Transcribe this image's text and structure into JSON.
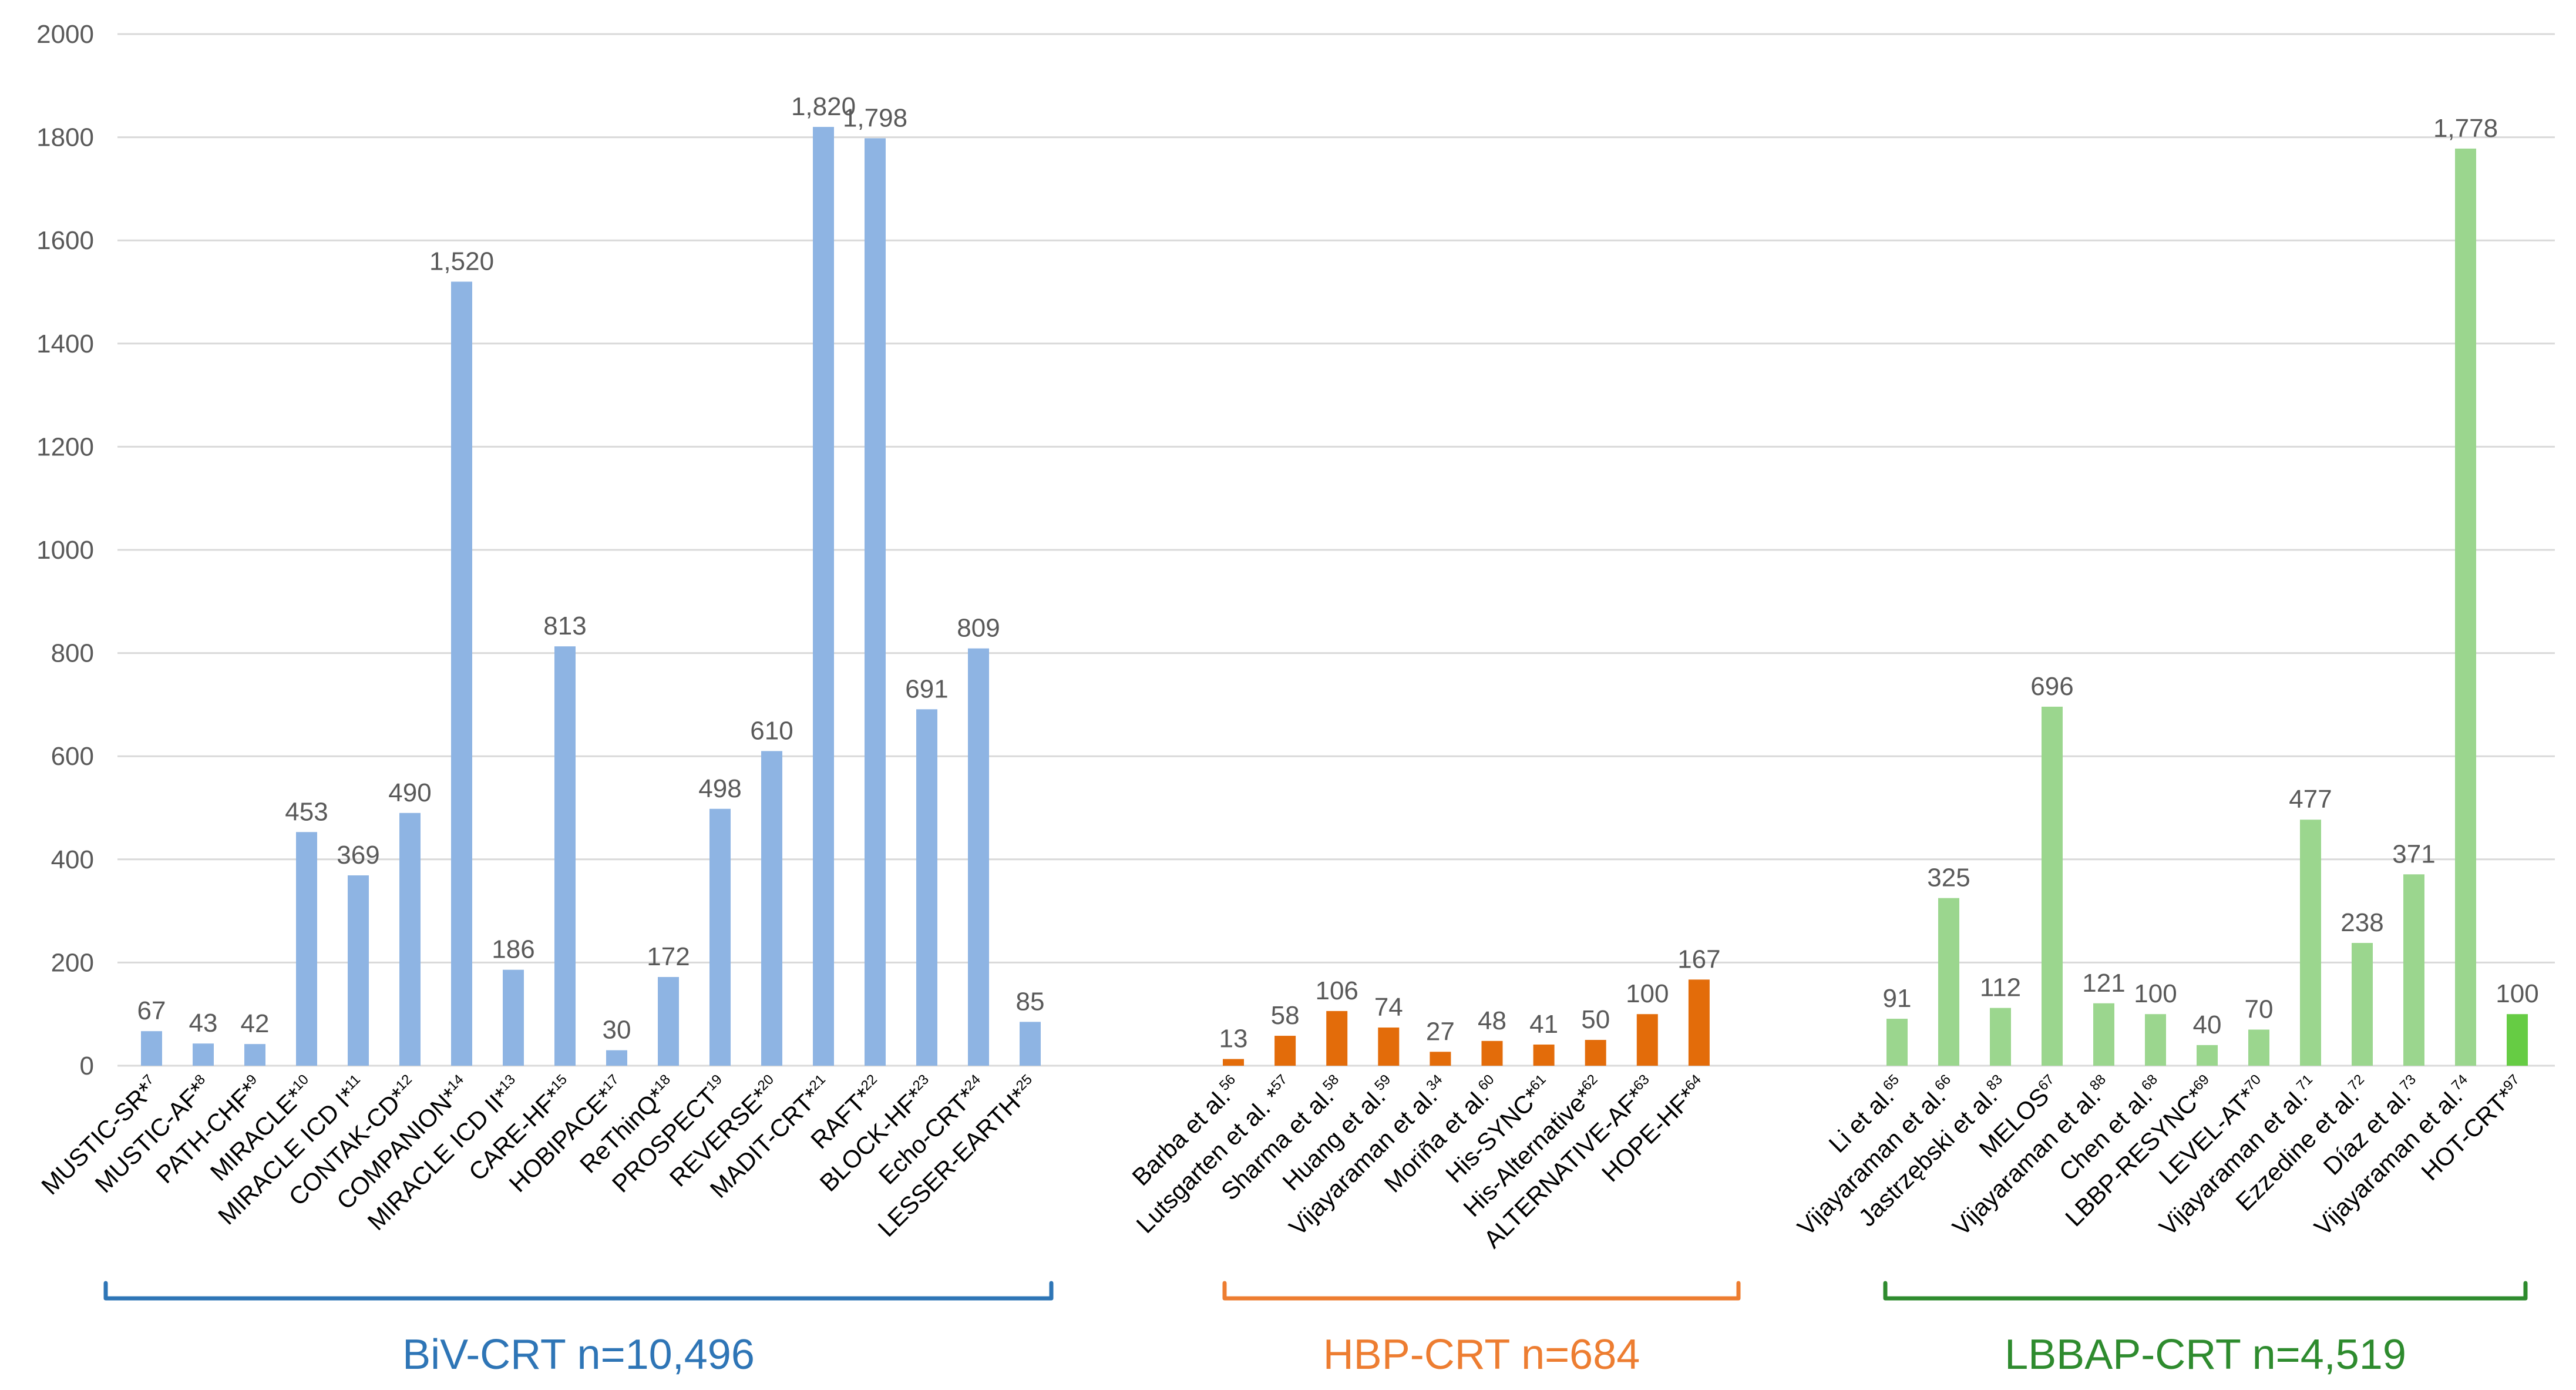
{
  "chart_data": {
    "type": "bar",
    "ylim": [
      0,
      2000
    ],
    "yticks": [
      0,
      200,
      400,
      600,
      800,
      1000,
      1200,
      1400,
      1600,
      1800,
      2000
    ],
    "grid": true,
    "colors": {
      "biv": "#8eb4e3",
      "hbp": "#e36c0a",
      "lbbap": "#9bd68e",
      "lbbap_highlight": "#66cc44",
      "biv_bracket": "#2e75b6",
      "hbp_bracket": "#ed7d31",
      "lbbap_bracket": "#2e8b2e",
      "grid": "#d9d9d9",
      "axis_text": "#595959"
    },
    "groups": [
      {
        "key": "biv",
        "label": "BiV-CRT n=10,496",
        "bars": [
          {
            "name": "MUSTIC-SR*",
            "ref": "7",
            "value": 67,
            "value_label": "67"
          },
          {
            "name": "MUSTIC-AF*",
            "ref": "8",
            "value": 43,
            "value_label": "43"
          },
          {
            "name": "PATH-CHF*",
            "ref": "9",
            "value": 42,
            "value_label": "42"
          },
          {
            "name": "MIRACLE*",
            "ref": "10",
            "value": 453,
            "value_label": "453"
          },
          {
            "name": "MIRACLE ICD I*",
            "ref": "11",
            "value": 369,
            "value_label": "369"
          },
          {
            "name": "CONTAK-CD*",
            "ref": "12",
            "value": 490,
            "value_label": "490"
          },
          {
            "name": "COMPANION*",
            "ref": "14",
            "value": 1520,
            "value_label": "1,520"
          },
          {
            "name": "MIRACLE ICD II*",
            "ref": "13",
            "value": 186,
            "value_label": "186"
          },
          {
            "name": "CARE-HF*",
            "ref": "15",
            "value": 813,
            "value_label": "813"
          },
          {
            "name": "HOBIPACE*",
            "ref": "17",
            "value": 30,
            "value_label": "30"
          },
          {
            "name": "ReThinQ*",
            "ref": "18",
            "value": 172,
            "value_label": "172"
          },
          {
            "name": "PROSPECT",
            "ref": "19",
            "value": 498,
            "value_label": "498"
          },
          {
            "name": "REVERSE*",
            "ref": "20",
            "value": 610,
            "value_label": "610"
          },
          {
            "name": "MADIT-CRT*",
            "ref": "21",
            "value": 1820,
            "value_label": "1,820"
          },
          {
            "name": "RAFT*",
            "ref": "22",
            "value": 1798,
            "value_label": "1,798"
          },
          {
            "name": "BLOCK-HF*",
            "ref": "23",
            "value": 691,
            "value_label": "691"
          },
          {
            "name": "Echo-CRT*",
            "ref": "24",
            "value": 809,
            "value_label": "809"
          },
          {
            "name": "LESSER-EARTH*",
            "ref": "25",
            "value": 85,
            "value_label": "85"
          }
        ]
      },
      {
        "key": "hbp",
        "label": "HBP-CRT n=684",
        "bars": [
          {
            "name": "Barba et al.",
            "ref": "56",
            "value": 13,
            "value_label": "13"
          },
          {
            "name": "Lutsgarten et al. *",
            "ref": "57",
            "value": 58,
            "value_label": "58"
          },
          {
            "name": "Sharma et al.",
            "ref": "58",
            "value": 106,
            "value_label": "106"
          },
          {
            "name": "Huang et al.",
            "ref": "59",
            "value": 74,
            "value_label": "74"
          },
          {
            "name": "Vijayaraman et al.",
            "ref": "34",
            "value": 27,
            "value_label": "27"
          },
          {
            "name": "Moriña et al.",
            "ref": "60",
            "value": 48,
            "value_label": "48"
          },
          {
            "name": "His-SYNC*",
            "ref": "61",
            "value": 41,
            "value_label": "41"
          },
          {
            "name": "His-Alternative*",
            "ref": "62",
            "value": 50,
            "value_label": "50"
          },
          {
            "name": "ALTERNATIVE-AF*",
            "ref": "63",
            "value": 100,
            "value_label": "100"
          },
          {
            "name": "HOPE-HF*",
            "ref": "64",
            "value": 167,
            "value_label": "167"
          }
        ]
      },
      {
        "key": "lbbap",
        "label": "LBBAP-CRT n=4,519",
        "bars": [
          {
            "name": "Li et al.",
            "ref": "65",
            "value": 91,
            "value_label": "91"
          },
          {
            "name": "Vijayaraman et al.",
            "ref": "66",
            "value": 325,
            "value_label": "325"
          },
          {
            "name": "Jastrzębski et al.",
            "ref": "83",
            "value": 112,
            "value_label": "112"
          },
          {
            "name": "MELOS",
            "ref": "67",
            "value": 696,
            "value_label": "696"
          },
          {
            "name": "Vijayaraman et al.",
            "ref": "88",
            "value": 121,
            "value_label": "121"
          },
          {
            "name": "Chen et al.",
            "ref": "68",
            "value": 100,
            "value_label": "100"
          },
          {
            "name": "LBBP-RESYNC*",
            "ref": "69",
            "value": 40,
            "value_label": "40"
          },
          {
            "name": "LEVEL-AT*",
            "ref": "70",
            "value": 70,
            "value_label": "70"
          },
          {
            "name": "Vijayaraman et al.",
            "ref": "71",
            "value": 477,
            "value_label": "477"
          },
          {
            "name": "Ezzedine et al.",
            "ref": "72",
            "value": 238,
            "value_label": "238"
          },
          {
            "name": "Díaz et al.",
            "ref": "73",
            "value": 371,
            "value_label": "371"
          },
          {
            "name": "Vijayaraman et al.",
            "ref": "74",
            "value": 1778,
            "value_label": "1,778"
          },
          {
            "name": "HOT-CRT*",
            "ref": "97",
            "value": 100,
            "value_label": "100",
            "highlight": true
          }
        ]
      }
    ]
  }
}
